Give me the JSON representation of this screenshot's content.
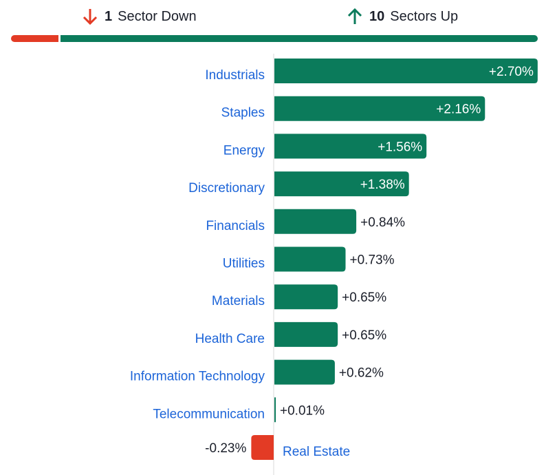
{
  "summary": {
    "down_count": "1",
    "down_label": "Sector Down",
    "up_count": "10",
    "up_label": "Sectors Up",
    "down_fraction": 1,
    "up_fraction": 10
  },
  "colors": {
    "up": "#0b7b5b",
    "down": "#e33b25",
    "label": "#1c64d8",
    "text": "#1b1f2a"
  },
  "chart_data": {
    "type": "bar",
    "orientation": "horizontal",
    "categories": [
      "Industrials",
      "Staples",
      "Energy",
      "Discretionary",
      "Financials",
      "Utilities",
      "Materials",
      "Health Care",
      "Information Technology",
      "Telecommunication",
      "Real Estate"
    ],
    "values": [
      2.7,
      2.16,
      1.56,
      1.38,
      0.84,
      0.73,
      0.65,
      0.65,
      0.62,
      0.01,
      -0.23
    ],
    "data_labels": [
      "+2.70%",
      "+2.16%",
      "+1.56%",
      "+1.38%",
      "+0.84%",
      "+0.73%",
      "+0.65%",
      "+0.65%",
      "+0.62%",
      "+0.01%",
      "-0.23%"
    ],
    "grid": false
  }
}
